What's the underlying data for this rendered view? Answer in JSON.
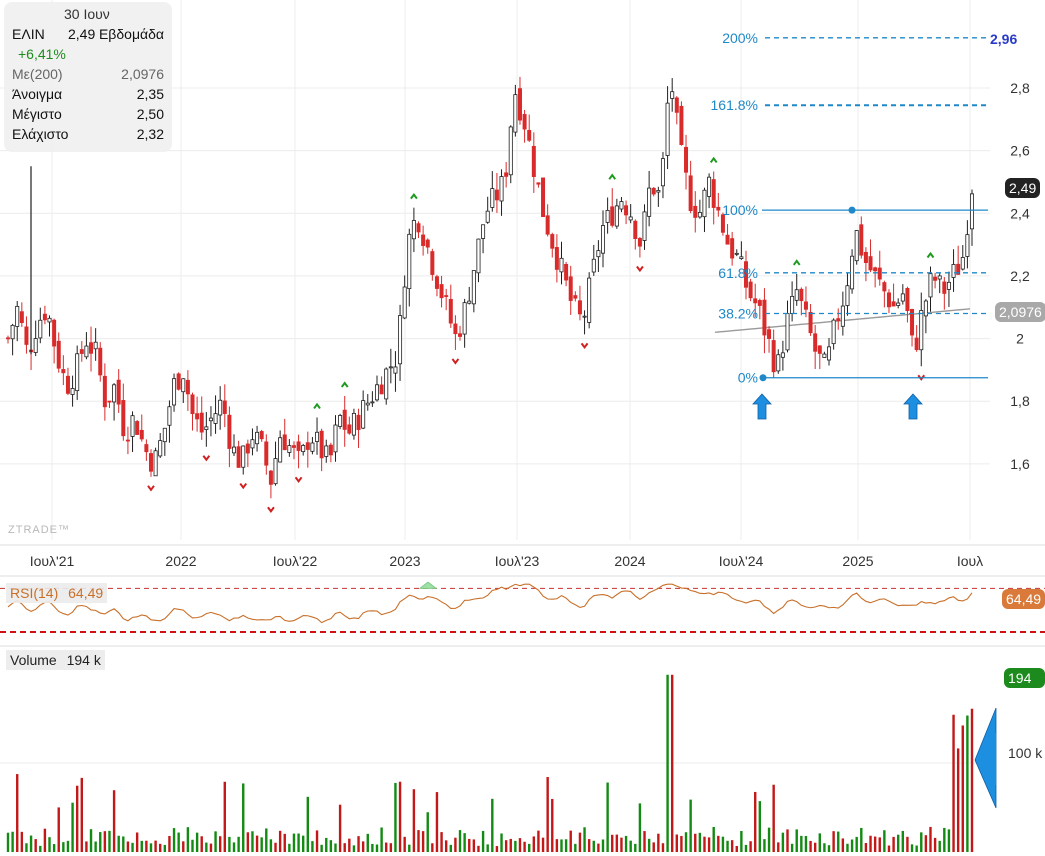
{
  "info_panel": {
    "date": "30 Ιουν",
    "symbol": "ΕΛΙΝ",
    "last": "2,49",
    "interval": "Εβδομάδα",
    "change": "+6,41%",
    "ma_label": "Με(200)",
    "ma_value": "2,0976",
    "open_label": "Άνοιγμα",
    "open_value": "2,35",
    "high_label": "Μέγιστο",
    "high_value": "2,50",
    "low_label": "Ελάχιστο",
    "low_value": "2,32"
  },
  "watermark": "ZTRADE™",
  "price_tag": "2,49",
  "ma_tag": "2,0976",
  "target_label": "2,96",
  "rsi": {
    "label": "RSI(14)",
    "value": "64,49",
    "tag": "64,49"
  },
  "volume": {
    "label": "Volume",
    "value": "194 k",
    "tag": "194 k",
    "axis_label": "100 k"
  },
  "colors": {
    "up": "#1f1f1f",
    "down": "#d92b2b",
    "ma": "#9a9a9a",
    "fib": "#1e88c8",
    "rsi": "#c8702a",
    "vol_up": "#138a13",
    "vol_down": "#c21818",
    "arrow": "#1d8fe0"
  },
  "chart_data": {
    "type": "candlestick",
    "y_ticks": [
      "2,8",
      "2,6",
      "2,4",
      "2,2",
      "2",
      "1,8",
      "1,6"
    ],
    "y_tick_values": [
      2.8,
      2.6,
      2.4,
      2.2,
      2.0,
      1.8,
      1.6
    ],
    "x_ticks": [
      "Ιουλ'21",
      "2022",
      "Ιουλ'22",
      "2023",
      "Ιουλ'23",
      "2024",
      "Ιουλ'24",
      "2025",
      "Ιουλ"
    ],
    "ylim": [
      1.45,
      3.0
    ],
    "fibonacci": [
      {
        "label": "200%",
        "value": 2.96
      },
      {
        "label": "161.8%",
        "value": 2.745
      },
      {
        "label": "100%",
        "value": 2.41
      },
      {
        "label": "61.8%",
        "value": 2.21
      },
      {
        "label": "38.2%",
        "value": 2.08
      },
      {
        "label": "0%",
        "value": 1.875
      }
    ],
    "close_path": [
      2.0,
      2.1,
      1.95,
      2.05,
      2.1,
      1.95,
      1.85,
      1.9,
      2.0,
      1.95,
      1.8,
      1.85,
      1.7,
      1.75,
      1.65,
      1.6,
      1.7,
      1.85,
      1.9,
      1.75,
      1.7,
      1.75,
      1.8,
      1.65,
      1.6,
      1.7,
      1.65,
      1.55,
      1.7,
      1.65,
      1.6,
      1.7,
      1.65,
      1.6,
      1.75,
      1.7,
      1.75,
      1.8,
      1.85,
      1.9,
      1.95,
      2.3,
      2.4,
      2.3,
      2.2,
      2.1,
      2.0,
      2.1,
      2.25,
      2.4,
      2.45,
      2.5,
      2.8,
      2.7,
      2.55,
      2.4,
      2.3,
      2.2,
      2.1,
      2.05,
      2.2,
      2.35,
      2.4,
      2.45,
      2.4,
      2.3,
      2.5,
      2.45,
      2.85,
      2.6,
      2.45,
      2.4,
      2.5,
      2.4,
      2.3,
      2.25,
      2.15,
      2.1,
      2.0,
      1.9,
      2.05,
      2.15,
      2.05,
      1.95,
      1.9,
      2.05,
      2.15,
      2.35,
      2.25,
      2.2,
      2.15,
      2.1,
      2.15,
      1.95,
      2.1,
      2.2,
      2.15,
      2.2,
      2.25,
      2.49
    ],
    "rsi": {
      "ylim": [
        20,
        80
      ],
      "upper": 70,
      "lower": 30,
      "last": 64.49
    },
    "volume": {
      "ylim": [
        0,
        260
      ],
      "unit": "k",
      "last": 194
    }
  }
}
